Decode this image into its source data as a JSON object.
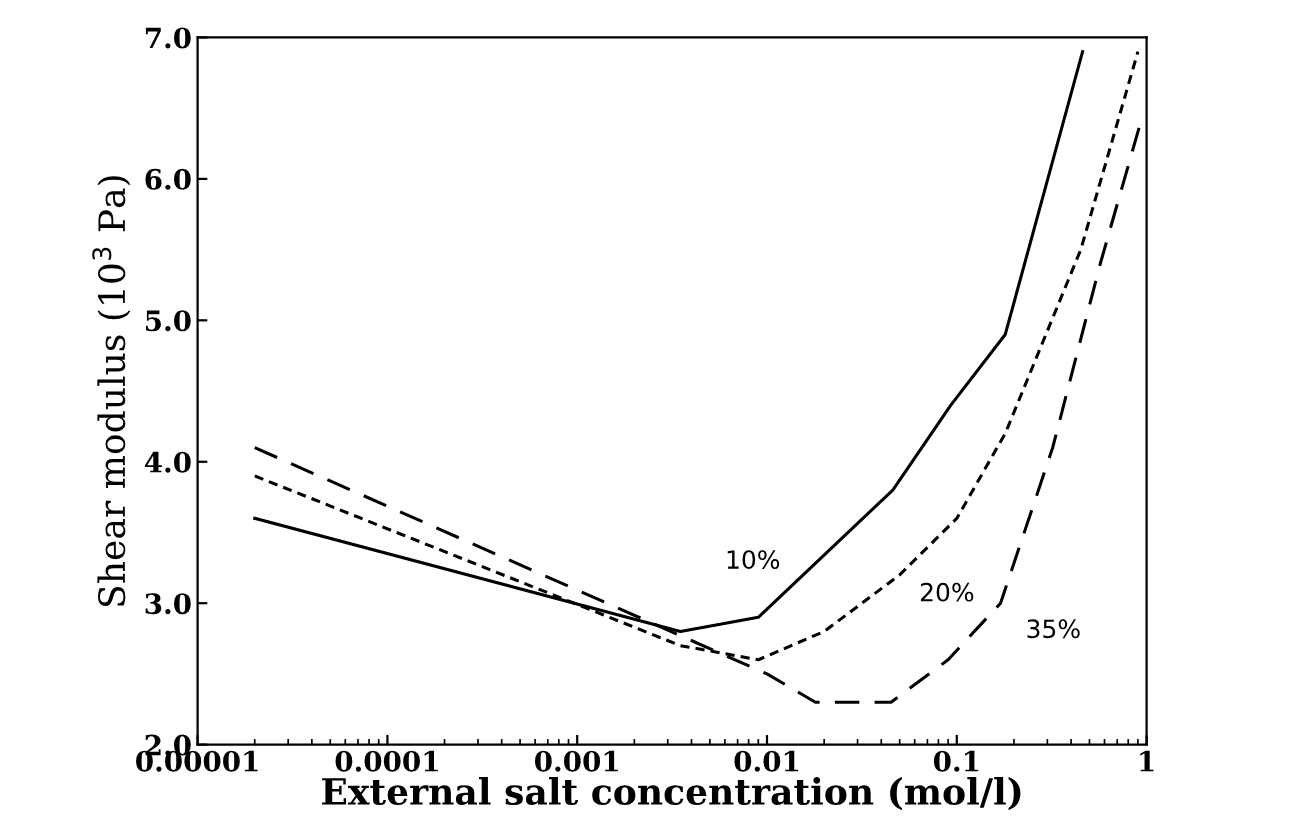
{
  "chart_data": {
    "type": "line",
    "xlabel": "External salt concentration (mol/l)",
    "ylabel": "Shear modulus (10$^{3}$ Pa)",
    "log": "x",
    "xlim": [
      1e-05,
      1
    ],
    "xticks": [
      {
        "value": 1e-05,
        "label": "0.00001"
      },
      {
        "value": 0.0001,
        "label": "0.0001"
      },
      {
        "value": 0.001,
        "label": "0.001"
      },
      {
        "value": 0.01,
        "label": "0.01"
      },
      {
        "value": 0.1,
        "label": "0.1"
      },
      {
        "value": 1,
        "label": "1"
      }
    ],
    "ylim": [
      2,
      7
    ],
    "yticks": [
      {
        "value": 2,
        "label": "2.0"
      },
      {
        "value": 3,
        "label": "3.0"
      },
      {
        "value": 4,
        "label": "4.0"
      },
      {
        "value": 5,
        "label": "5.0"
      },
      {
        "value": 6,
        "label": "6.0"
      },
      {
        "value": 7,
        "label": "7.0"
      }
    ],
    "grid": false,
    "legend": false,
    "series": [
      {
        "name": "10%",
        "color": "#000000",
        "line_style": "solid",
        "x": [
          2e-05,
          0.0035,
          0.009,
          0.046,
          0.093,
          0.18,
          0.46
        ],
        "values": [
          3.6,
          2.8,
          2.9,
          3.8,
          4.4,
          4.9,
          6.9
        ]
      },
      {
        "name": "20%",
        "color": "#000000",
        "line_style": "dotted",
        "x": [
          2e-05,
          0.0035,
          0.009,
          0.02,
          0.05,
          0.1,
          0.18,
          0.45,
          0.9
        ],
        "values": [
          3.9,
          2.7,
          2.6,
          2.8,
          3.2,
          3.6,
          4.2,
          5.5,
          6.9
        ]
      },
      {
        "name": "35%",
        "color": "#000000",
        "line_style": "dashed",
        "x": [
          2e-05,
          0.01,
          0.018,
          0.045,
          0.09,
          0.17,
          0.32,
          0.57,
          0.93
        ],
        "values": [
          4.1,
          2.5,
          2.3,
          2.3,
          2.6,
          3.0,
          4.1,
          5.4,
          6.4
        ]
      }
    ]
  }
}
